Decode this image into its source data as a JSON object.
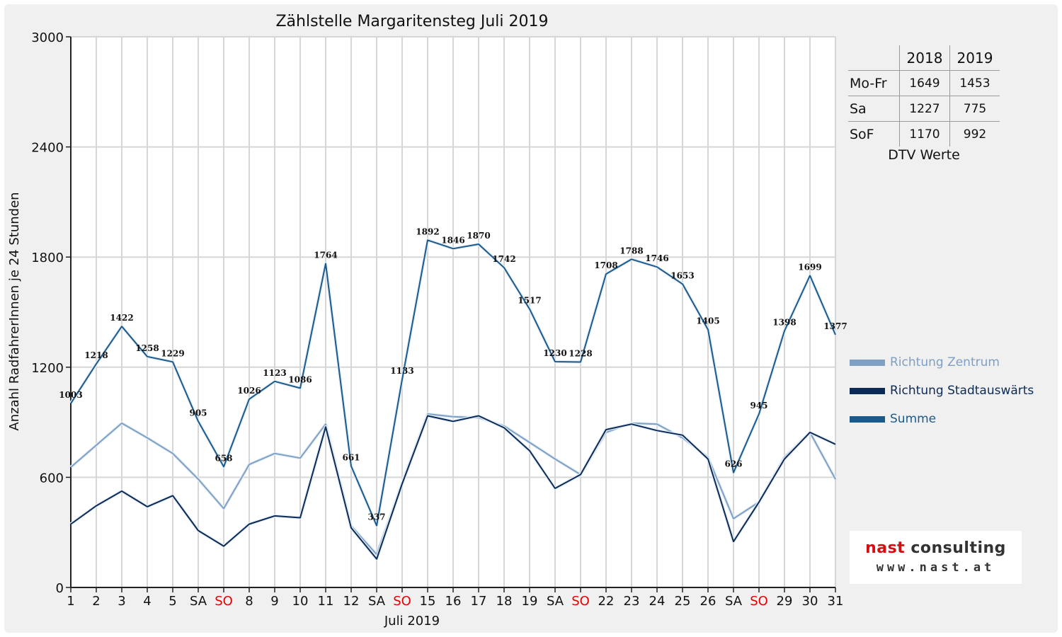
{
  "chart_data": {
    "type": "line",
    "title": "Zählstelle Margaritensteg Juli 2019",
    "xlabel": "Juli 2019",
    "ylabel": "Anzahl RadfahrerInnen je 24 Stunden",
    "ylim": [
      0,
      3000
    ],
    "yticks": [
      0,
      600,
      1200,
      1800,
      2400,
      3000
    ],
    "grid": true,
    "legend_position": "right",
    "categories": [
      "1",
      "2",
      "3",
      "4",
      "5",
      "SA",
      "SO",
      "8",
      "9",
      "10",
      "11",
      "12",
      "SA",
      "SO",
      "15",
      "16",
      "17",
      "18",
      "19",
      "SA",
      "SO",
      "22",
      "23",
      "24",
      "25",
      "26",
      "SA",
      "SO",
      "29",
      "30",
      "31"
    ],
    "highlight_categories": [
      6,
      13,
      20,
      27
    ],
    "highlight_color": "#e60000",
    "series": [
      {
        "name": "Richtung Zentrum",
        "color": "#7da0c4",
        "values": [
          655,
          775,
          895,
          815,
          730,
          590,
          430,
          670,
          730,
          705,
          890,
          335,
          180,
          570,
          945,
          930,
          925,
          880,
          790,
          700,
          615,
          845,
          895,
          890,
          815,
          710,
          375,
          465,
          710,
          845,
          590
        ]
      },
      {
        "name": "Richtung Stadtauswärts",
        "color": "#0b2a56",
        "values": [
          345,
          445,
          525,
          440,
          500,
          310,
          225,
          345,
          390,
          380,
          875,
          325,
          155,
          565,
          935,
          905,
          935,
          870,
          745,
          540,
          615,
          860,
          890,
          855,
          830,
          700,
          250,
          465,
          700,
          845,
          780
        ]
      },
      {
        "name": "Summe",
        "color": "#1b5a8c",
        "values": [
          1003,
          1218,
          1422,
          1258,
          1229,
          905,
          658,
          1026,
          1123,
          1086,
          1764,
          661,
          337,
          1133,
          1892,
          1846,
          1870,
          1742,
          1517,
          1230,
          1228,
          1708,
          1788,
          1746,
          1653,
          1405,
          626,
          945,
          1398,
          1699,
          1377
        ],
        "data_labels": [
          "1003",
          "1218",
          "1422",
          "1258",
          "1229",
          "905",
          "658",
          "1026",
          "1123",
          "1086",
          "1764",
          "661",
          "337",
          "1133",
          "1892",
          "1846",
          "1870",
          "1742",
          "1517",
          "1230",
          "1228",
          "1708",
          "1788",
          "1746",
          "1653",
          "1405",
          "626",
          "945",
          "1398",
          "1699",
          "1377"
        ]
      }
    ]
  },
  "dtv_table": {
    "headers": [
      "2018",
      "2019"
    ],
    "rows": [
      {
        "label": "Mo-Fr",
        "v2018": "1649",
        "v2019": "1453"
      },
      {
        "label": "Sa",
        "v2018": "1227",
        "v2019": "775"
      },
      {
        "label": "SoF",
        "v2018": "1170",
        "v2019": "992"
      }
    ],
    "caption": "DTV Werte"
  },
  "logo": {
    "name_part1": "nast",
    "name_part2": " consulting",
    "url": "www.nast.at"
  }
}
